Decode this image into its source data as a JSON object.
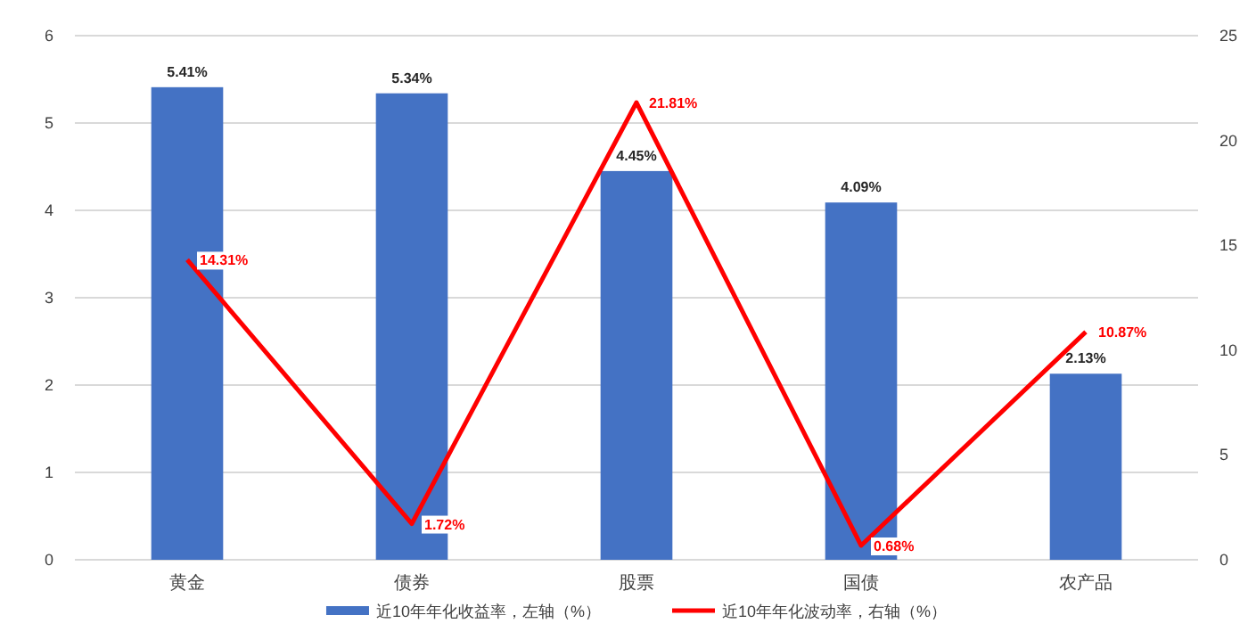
{
  "chart_data": {
    "type": "bar",
    "categories": [
      "黄金",
      "债券",
      "股票",
      "国债",
      "农产品"
    ],
    "series": [
      {
        "name": "近10年年化收益率，左轴（%）",
        "color": "#4472c4",
        "values": [
          5.41,
          5.34,
          4.45,
          4.09,
          2.13
        ],
        "value_labels": [
          "5.41%",
          "5.34%",
          "4.45%",
          "4.09%",
          "2.13%"
        ]
      },
      {
        "name": "近10年年化波动率，右轴（%）",
        "type": "line",
        "axis": "y2",
        "color": "#ff0000",
        "values": [
          14.31,
          1.72,
          21.81,
          0.68,
          10.87
        ],
        "value_labels": [
          "14.31%",
          "1.72%",
          "21.81%",
          "0.68%",
          "10.87%"
        ]
      }
    ],
    "ylim": [
      0,
      6
    ],
    "yticks": [
      0,
      1,
      2,
      3,
      4,
      5,
      6
    ],
    "y2lim": [
      0,
      25
    ],
    "y2ticks": [
      0,
      5,
      10,
      15,
      20,
      25
    ],
    "grid": "y",
    "legend": "bottom",
    "marker": "none",
    "line_style": "solid"
  }
}
